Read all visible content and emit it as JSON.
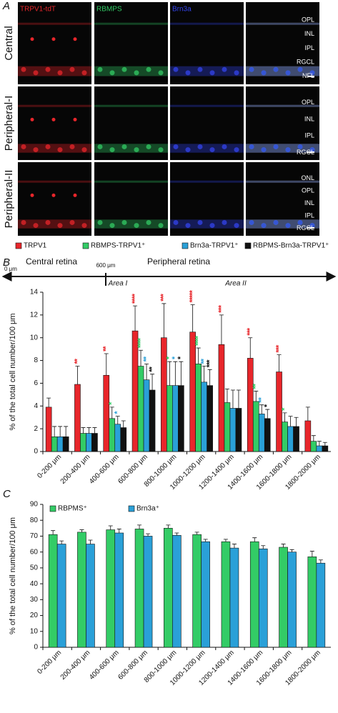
{
  "panel_a": {
    "label": "A",
    "rows": [
      "Central",
      "Peripheral-I",
      "Peripheral-II"
    ],
    "columns": [
      "TRPV1-tdT",
      "RBMPS",
      "Brn3a"
    ],
    "layers": [
      [
        "OPL",
        "INL",
        "IPL",
        "RGCL",
        "NFL"
      ],
      [
        "OPL",
        "INL",
        "IPL",
        "RGCL"
      ],
      [
        "ONL",
        "OPL",
        "INL",
        "IPL",
        "RGCL"
      ]
    ]
  },
  "chart_data": [
    {
      "type": "bar",
      "panel_label": "B",
      "y_label": "% of the total cell number/100 μm",
      "annotations": {
        "start": "0 μm",
        "boundary": "600 μm",
        "central": "Central retina",
        "peripheral": "Peripheral retina",
        "area1": "Area I",
        "area2": "Area II"
      },
      "categories": [
        "0-200 μm",
        "200-400 μm",
        "400-600 μm",
        "600-800 μm",
        "800-1000 μm",
        "1000-1200 μm",
        "1200-1400 μm",
        "1400-1600 μm",
        "1600-1800 μm",
        "1800-2000 μm"
      ],
      "series": [
        {
          "name": "TRPV1",
          "color": "#e8262b",
          "values": [
            3.9,
            5.9,
            6.7,
            10.6,
            10.0,
            10.5,
            9.4,
            8.2,
            7.0,
            2.7
          ],
          "errors": [
            0.8,
            1.6,
            1.9,
            2.2,
            3.0,
            2.4,
            2.6,
            1.8,
            1.5,
            1.2
          ],
          "stars": [
            null,
            "**",
            "**",
            "****",
            "***",
            "*****",
            "***",
            "***",
            "***",
            null
          ]
        },
        {
          "name": "RBMPS-TRPV1⁺",
          "color": "#33cc66",
          "values": [
            1.3,
            1.6,
            2.9,
            7.5,
            5.8,
            7.7,
            4.3,
            4.4,
            2.6,
            0.9
          ],
          "errors": [
            0.9,
            0.5,
            1.0,
            1.4,
            2.1,
            1.4,
            1.2,
            0.9,
            0.8,
            0.5
          ],
          "stars": [
            null,
            null,
            "*",
            "****",
            "*",
            "****",
            null,
            "**",
            "*",
            null
          ]
        },
        {
          "name": "Brn3a-TRPV1⁺",
          "color": "#2aa0d8",
          "values": [
            1.3,
            1.6,
            2.4,
            6.3,
            5.8,
            6.1,
            3.8,
            3.3,
            2.2,
            0.5
          ],
          "errors": [
            0.9,
            0.5,
            0.7,
            1.4,
            2.1,
            1.4,
            1.6,
            0.8,
            0.9,
            0.4
          ],
          "stars": [
            null,
            null,
            "*",
            "**",
            "*",
            "**",
            null,
            "**",
            null,
            null
          ]
        },
        {
          "name": "RBPMS-Brn3a-TRPV1⁺",
          "color": "#111111",
          "values": [
            1.3,
            1.6,
            2.1,
            5.4,
            5.8,
            5.8,
            3.8,
            2.9,
            2.2,
            0.5
          ],
          "errors": [
            0.9,
            0.5,
            0.6,
            1.4,
            2.1,
            1.4,
            1.6,
            0.8,
            0.8,
            0.3
          ],
          "stars": [
            null,
            null,
            null,
            "**",
            "*",
            "***",
            null,
            "*",
            null,
            null
          ]
        }
      ],
      "ylim": [
        0,
        14
      ],
      "yticks": [
        0,
        2,
        4,
        6,
        8,
        10,
        12,
        14
      ]
    },
    {
      "type": "bar",
      "panel_label": "C",
      "y_label": "% of the total cell number/100 μm",
      "categories": [
        "0-200 μm",
        "200-400 μm",
        "400-600 μm",
        "600-800 μm",
        "800-1000 μm",
        "1000-1200 μm",
        "1200-1400 μm",
        "1400-1600 μm",
        "1600-1800 μm",
        "1800-2000 μm"
      ],
      "series": [
        {
          "name": "RBPMS⁺",
          "color": "#33cc66",
          "values": [
            71,
            72.5,
            74,
            74.5,
            75,
            71,
            66.5,
            66.5,
            63,
            57
          ],
          "errors": [
            2.5,
            1.5,
            2.5,
            2.5,
            2,
            1.5,
            1.5,
            2.5,
            2,
            3.5
          ]
        },
        {
          "name": "Brn3a⁺",
          "color": "#2aa0d8",
          "values": [
            65,
            65,
            72,
            70,
            70.5,
            66.5,
            62.5,
            62,
            60,
            53
          ],
          "errors": [
            2,
            2.5,
            2.5,
            1.5,
            1.5,
            1.5,
            2.5,
            2,
            1.5,
            2
          ]
        }
      ],
      "ylim": [
        0,
        90
      ],
      "yticks": [
        0,
        10,
        20,
        30,
        40,
        50,
        60,
        70,
        80,
        90
      ]
    }
  ]
}
